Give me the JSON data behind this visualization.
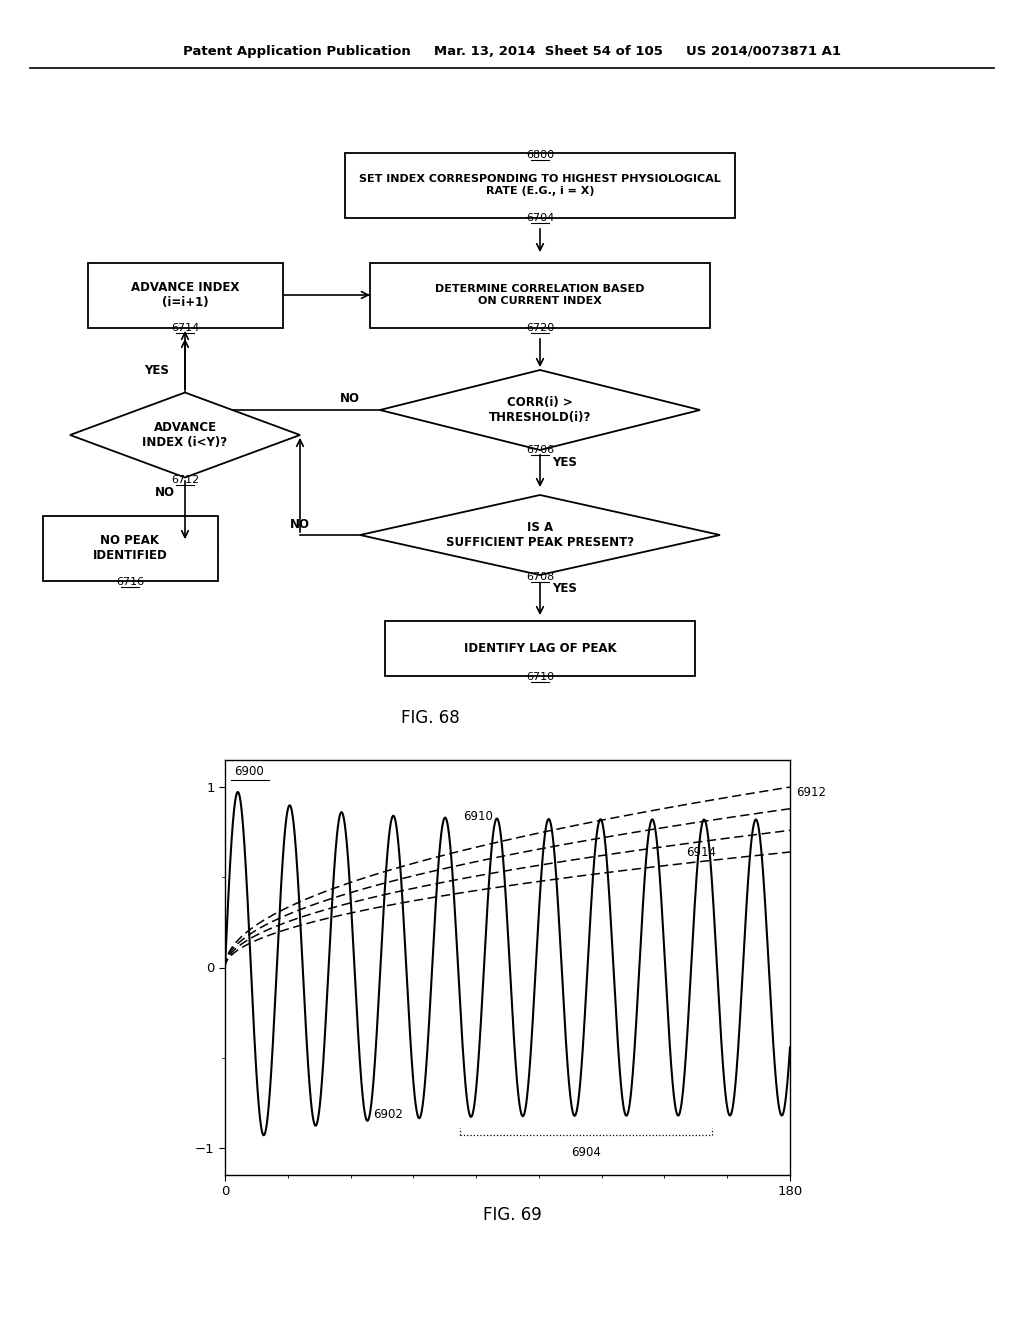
{
  "header_text_left": "Patent Application Publication",
  "header_text_mid": "Mar. 13, 2014  Sheet 54 of 105",
  "header_text_right": "US 2014/0073871 A1",
  "fig68_label": "FIG. 68",
  "fig69_label": "FIG. 69",
  "background_color": "#ffffff"
}
